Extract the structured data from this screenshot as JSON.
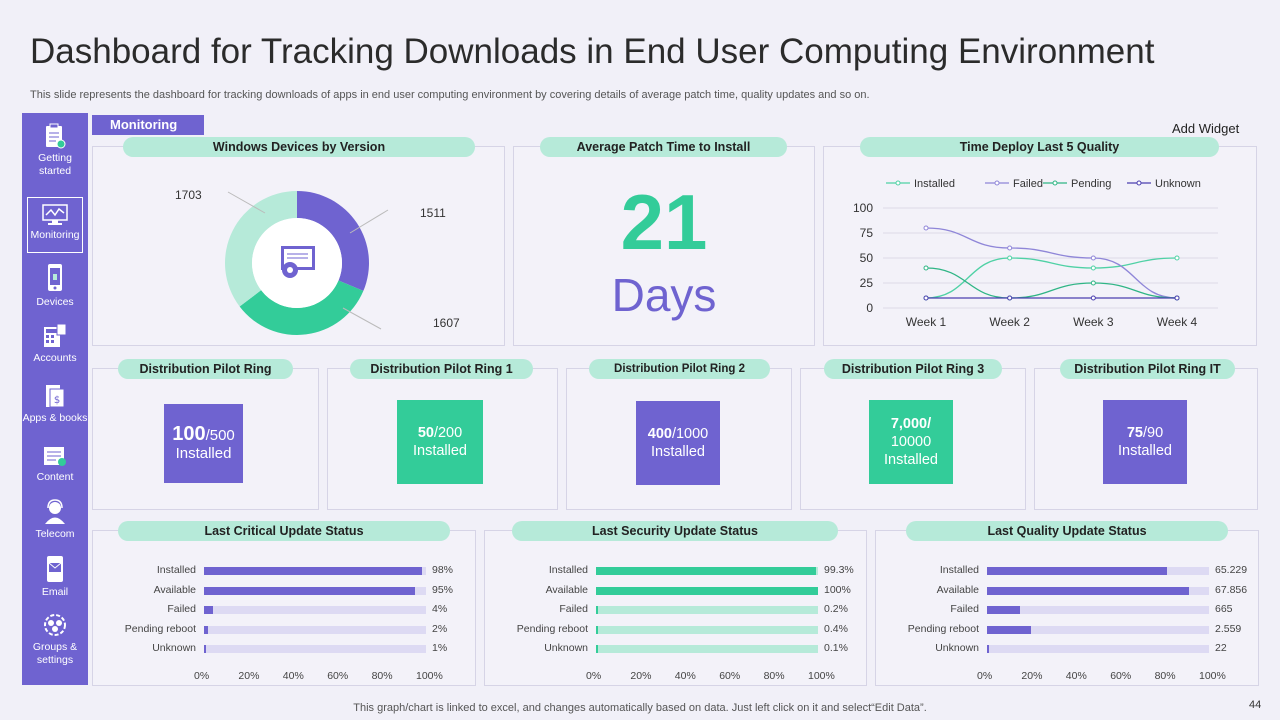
{
  "title": "Dashboard for Tracking Downloads in End User Computing Environment",
  "subtitle": "This slide represents the dashboard for tracking downloads of apps in end user computing environment by covering details of average patch time, quality updates and so on.",
  "monitoring_label": "Monitoring",
  "add_widget": "Add Widget",
  "sidebar": {
    "items": [
      {
        "label": "Getting started",
        "icon": "clipboard-icon"
      },
      {
        "label": "Monitoring",
        "icon": "monitor-chart-icon"
      },
      {
        "label": "Devices",
        "icon": "phone-icon"
      },
      {
        "label": "Accounts",
        "icon": "calculator-icon"
      },
      {
        "label": "Apps & books",
        "icon": "books-icon"
      },
      {
        "label": "Content",
        "icon": "document-icon"
      },
      {
        "label": "Telecom",
        "icon": "headset-user-icon"
      },
      {
        "label": "Email",
        "icon": "mobile-mail-icon"
      },
      {
        "label": "Groups & settings",
        "icon": "gear-group-icon"
      }
    ]
  },
  "windows_devices": {
    "title": "Windows Devices by Version",
    "labels": [
      "1703",
      "1511",
      "1607"
    ]
  },
  "patch_time": {
    "title": "Average Patch Time to Install",
    "value": "21",
    "unit": "Days"
  },
  "time_deploy": {
    "title": "Time Deploy Last 5 Quality"
  },
  "rings": [
    {
      "title": "Distribution Pilot Ring",
      "num": "100",
      "den": "/500",
      "installed": "Installed",
      "color": "purple"
    },
    {
      "title": "Distribution Pilot Ring 1",
      "num": "50",
      "den": "/200",
      "installed": "Installed",
      "color": "green"
    },
    {
      "title": "Distribution  Pilot Ring  2",
      "num": "400",
      "den": "/1000",
      "installed": "Installed",
      "color": "purple"
    },
    {
      "title": "Distribution Pilot Ring 3",
      "num": "7,000/",
      "den": "10000",
      "installed": "Installed",
      "color": "green"
    },
    {
      "title": "Distribution Pilot Ring IT",
      "num": "75",
      "den": "/90",
      "installed": "Installed",
      "color": "purple"
    }
  ],
  "footer": "This graph/chart is linked to excel,  and changes automatically based on data. Just left click on it and select“Edit Data”.",
  "page_number": "44",
  "chart_data": [
    {
      "type": "pie",
      "title": "Windows Devices by Version",
      "categories": [
        "1511",
        "1607",
        "1703"
      ],
      "values": [
        1511,
        1607,
        1703
      ],
      "colors": [
        "#6f63d0",
        "#33cc99",
        "#b6ead9"
      ]
    },
    {
      "type": "line",
      "title": "Time Deploy Last 5 Quality",
      "categories": [
        "Week 1",
        "Week 2",
        "Week 3",
        "Week 4"
      ],
      "series": [
        {
          "name": "Installed",
          "values": [
            10,
            50,
            40,
            50
          ],
          "color": "#4fd1a5"
        },
        {
          "name": "Failed",
          "values": [
            80,
            60,
            50,
            10
          ],
          "color": "#8f86d8"
        },
        {
          "name": "Pending",
          "values": [
            40,
            10,
            25,
            10
          ],
          "color": "#2fb585"
        },
        {
          "name": "Unknown",
          "values": [
            10,
            10,
            10,
            10
          ],
          "color": "#4b3fb0"
        }
      ],
      "ylim": [
        0,
        100
      ],
      "yticks": [
        "100",
        "75",
        "50",
        "25",
        "0"
      ],
      "legend": "top"
    },
    {
      "type": "bar",
      "title": "Last Critical Update Status",
      "categories": [
        "Installed",
        "Available",
        "Failed",
        "Pending reboot",
        "Unknown"
      ],
      "values": [
        98,
        95,
        4,
        2,
        1
      ],
      "value_labels": [
        "98%",
        "95%",
        "4%",
        "2%",
        "1%"
      ],
      "xticks": [
        "0%",
        "20%",
        "40%",
        "60%",
        "80%",
        "100%"
      ],
      "color": "#6f63d0",
      "track": "#dddaf3"
    },
    {
      "type": "bar",
      "title": "Last Security Update Status",
      "categories": [
        "Installed",
        "Available",
        "Failed",
        "Pending reboot",
        "Unknown"
      ],
      "values": [
        99.3,
        100,
        0.2,
        0.4,
        0.1
      ],
      "value_labels": [
        "99.3%",
        "100%",
        "0.2%",
        "0.4%",
        "0.1%"
      ],
      "xticks": [
        "0%",
        "20%",
        "40%",
        "60%",
        "80%",
        "100%"
      ],
      "color": "#33cc99",
      "track": "#b6ead9"
    },
    {
      "type": "bar",
      "title": "Last Quality Update Status",
      "categories": [
        "Installed",
        "Available",
        "Failed",
        "Pending reboot",
        "Unknown"
      ],
      "values": [
        81,
        91,
        15,
        20,
        1
      ],
      "value_labels": [
        "65.229",
        "67.856",
        "665",
        "2.559",
        "22"
      ],
      "xticks": [
        "0%",
        "20%",
        "40%",
        "60%",
        "80%",
        "100%"
      ],
      "color": "#6f63d0",
      "track": "#dddaf3"
    }
  ]
}
